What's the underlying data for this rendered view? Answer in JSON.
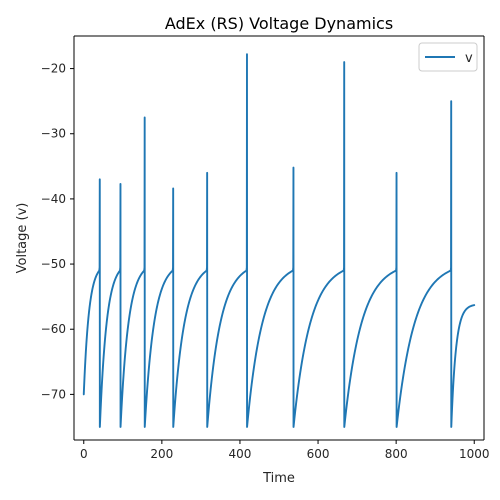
{
  "chart_data": {
    "type": "line",
    "title": "AdEx (RS) Voltage Dynamics",
    "xlabel": "Time",
    "ylabel": "Voltage (v)",
    "xlim": [
      -25,
      1025
    ],
    "ylim": [
      -77,
      -15
    ],
    "xticks": [
      0,
      200,
      400,
      600,
      800,
      1000
    ],
    "xtick_labels": [
      "0",
      "200",
      "400",
      "600",
      "800",
      "1000"
    ],
    "yticks": [
      -70,
      -60,
      -50,
      -40,
      -30,
      -20
    ],
    "ytick_labels": [
      "−70",
      "−60",
      "−50",
      "−40",
      "−30",
      "−20"
    ],
    "grid": false,
    "legend_position": "top-right",
    "series": [
      {
        "name": "v",
        "color": "#1f77b4",
        "initial_value": -70,
        "reset_value": -75,
        "end_value": -56.3,
        "end_time": 1000,
        "spikes": [
          {
            "t": 41,
            "threshold": -51,
            "peak": -37
          },
          {
            "t": 94,
            "threshold": -51,
            "peak": -37.7
          },
          {
            "t": 156,
            "threshold": -51,
            "peak": -27.5
          },
          {
            "t": 229,
            "threshold": -51,
            "peak": -38.4
          },
          {
            "t": 316,
            "threshold": -51,
            "peak": -36
          },
          {
            "t": 418,
            "threshold": -51,
            "peak": -17.8
          },
          {
            "t": 537,
            "threshold": -51,
            "peak": -35.2
          },
          {
            "t": 667,
            "threshold": -51,
            "peak": -19
          },
          {
            "t": 801,
            "threshold": -51,
            "peak": -36
          },
          {
            "t": 941,
            "threshold": -51,
            "peak": -25
          }
        ]
      }
    ]
  }
}
